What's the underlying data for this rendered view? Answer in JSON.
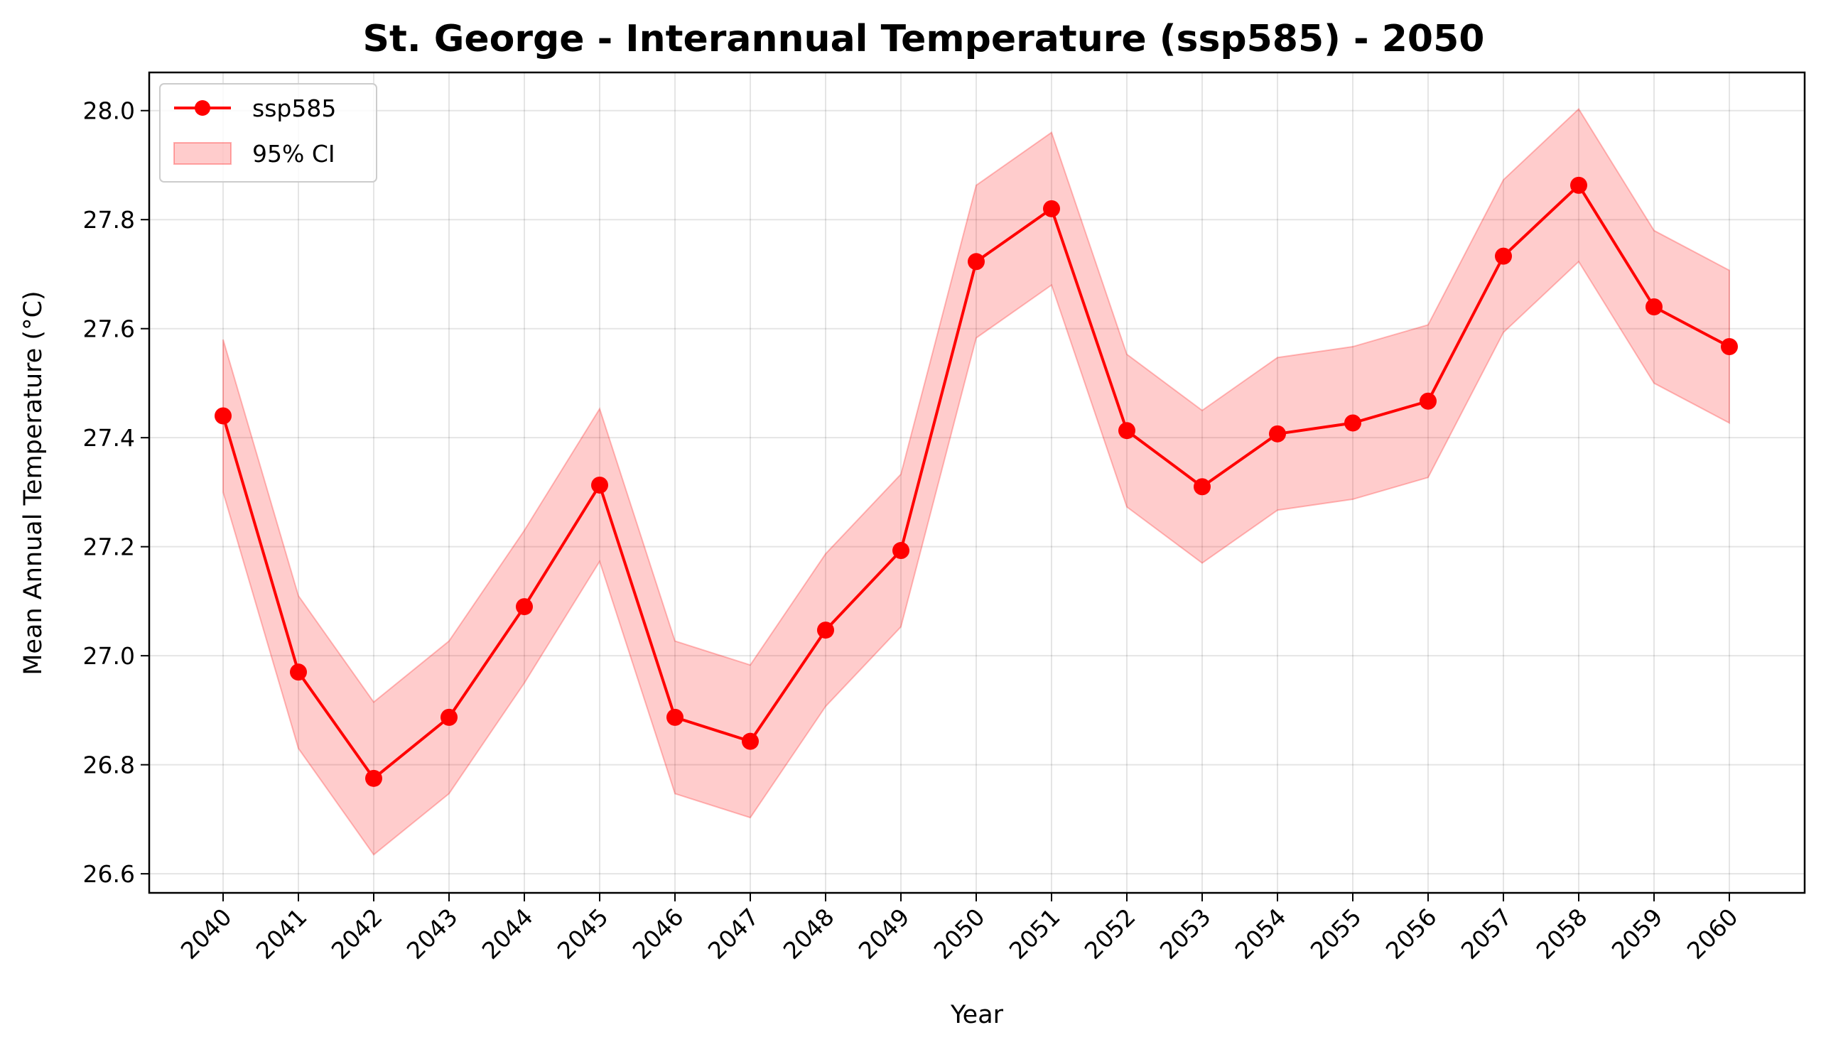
{
  "chart_data": {
    "type": "line",
    "title": "St. George - Interannual Temperature (ssp585) - 2050",
    "xlabel": "Year",
    "ylabel": "Mean Annual Temperature (°C)",
    "x": [
      "2040",
      "2041",
      "2042",
      "2043",
      "2044",
      "2045",
      "2046",
      "2047",
      "2048",
      "2049",
      "2050",
      "2051",
      "2052",
      "2053",
      "2054",
      "2055",
      "2056",
      "2057",
      "2058",
      "2059",
      "2060"
    ],
    "ylim": [
      26.565,
      28.07
    ],
    "yticks": [
      26.6,
      26.8,
      27.0,
      27.2,
      27.4,
      27.6,
      27.8,
      28.0
    ],
    "ytick_labels": [
      "26.6",
      "26.8",
      "27.0",
      "27.2",
      "27.4",
      "27.6",
      "27.8",
      "28.0"
    ],
    "grid": true,
    "legend_position": "top-left",
    "series": [
      {
        "name": "ssp585",
        "color": "#ff0000",
        "values": [
          27.44,
          26.97,
          26.775,
          26.887,
          27.09,
          27.313,
          26.887,
          26.843,
          27.047,
          27.193,
          27.723,
          27.82,
          27.413,
          27.31,
          27.407,
          27.427,
          27.467,
          27.733,
          27.863,
          27.64,
          27.567
        ]
      }
    ],
    "ci": {
      "name": "95% CI",
      "color": "#ff0000",
      "opacity": 0.2,
      "lower": [
        27.3,
        26.83,
        26.635,
        26.747,
        26.95,
        27.173,
        26.747,
        26.703,
        26.907,
        27.053,
        27.583,
        27.68,
        27.273,
        27.17,
        27.267,
        27.287,
        27.327,
        27.593,
        27.723,
        27.5,
        27.427
      ],
      "upper": [
        27.58,
        27.11,
        26.915,
        27.027,
        27.23,
        27.453,
        27.027,
        26.983,
        27.187,
        27.333,
        27.863,
        27.96,
        27.553,
        27.45,
        27.547,
        27.567,
        27.607,
        27.873,
        28.003,
        27.78,
        27.707
      ]
    }
  }
}
